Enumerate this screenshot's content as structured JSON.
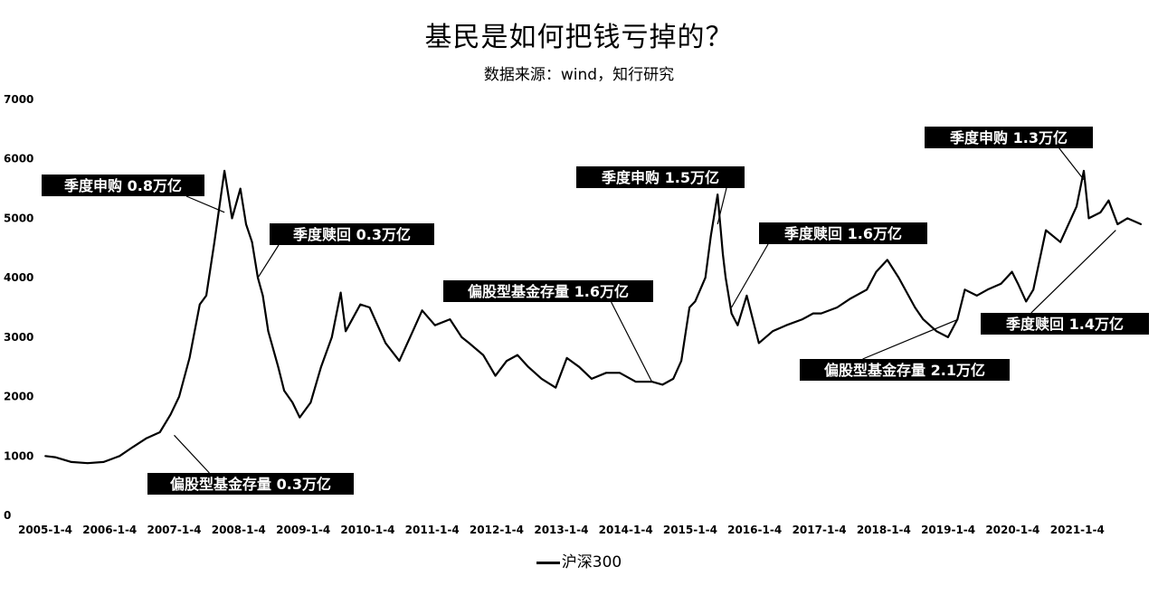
{
  "chart_data": {
    "type": "line",
    "title": "基民是如何把钱亏掉的？",
    "subtitle": "数据来源：wind，知行研究",
    "xlabel": "",
    "ylabel": "",
    "ylim": [
      0,
      7000
    ],
    "yticks": [
      0,
      1000,
      2000,
      3000,
      4000,
      5000,
      6000,
      7000
    ],
    "xticks": [
      "2005-1-4",
      "2006-1-4",
      "2007-1-4",
      "2008-1-4",
      "2009-1-4",
      "2010-1-4",
      "2011-1-4",
      "2012-1-4",
      "2013-1-4",
      "2014-1-4",
      "2015-1-4",
      "2016-1-4",
      "2017-1-4",
      "2018-1-4",
      "2019-1-4",
      "2020-1-4",
      "2021-1-4"
    ],
    "xlim": [
      "2005-01-04",
      "2021-12-31"
    ],
    "grid": false,
    "legend": "bottom-center",
    "series": [
      {
        "name": "沪深300",
        "x": [
          "2005-01-04",
          "2005-03-01",
          "2005-06-01",
          "2005-09-01",
          "2005-12-01",
          "2006-03-01",
          "2006-05-15",
          "2006-08-01",
          "2006-10-15",
          "2006-12-15",
          "2007-02-01",
          "2007-04-01",
          "2007-05-29",
          "2007-07-05",
          "2007-08-20",
          "2007-10-16",
          "2007-11-28",
          "2008-01-14",
          "2008-02-15",
          "2008-03-20",
          "2008-04-22",
          "2008-05-20",
          "2008-06-20",
          "2008-08-15",
          "2008-09-18",
          "2008-11-04",
          "2008-12-15",
          "2009-02-15",
          "2009-04-15",
          "2009-06-15",
          "2009-08-04",
          "2009-09-01",
          "2009-11-23",
          "2010-01-15",
          "2010-04-15",
          "2010-07-02",
          "2010-09-01",
          "2010-11-08",
          "2011-01-20",
          "2011-04-15",
          "2011-06-20",
          "2011-08-01",
          "2011-10-20",
          "2011-12-28",
          "2012-03-01",
          "2012-05-01",
          "2012-07-01",
          "2012-09-15",
          "2012-12-03",
          "2013-02-05",
          "2013-04-15",
          "2013-06-25",
          "2013-09-15",
          "2013-12-01",
          "2014-03-01",
          "2014-06-01",
          "2014-08-01",
          "2014-09-30",
          "2014-11-15",
          "2014-12-31",
          "2015-02-01",
          "2015-03-31",
          "2015-05-01",
          "2015-06-08",
          "2015-07-08",
          "2015-07-24",
          "2015-08-26",
          "2015-09-30",
          "2015-11-20",
          "2016-01-28",
          "2016-04-15",
          "2016-07-01",
          "2016-09-30",
          "2016-11-30",
          "2017-01-15",
          "2017-04-15",
          "2017-06-30",
          "2017-09-30",
          "2017-11-22",
          "2018-01-24",
          "2018-03-30",
          "2018-06-30",
          "2018-08-15",
          "2018-10-30",
          "2019-01-03",
          "2019-02-25",
          "2019-04-08",
          "2019-06-15",
          "2019-08-15",
          "2019-10-30",
          "2019-12-31",
          "2020-02-03",
          "2020-03-20",
          "2020-04-30",
          "2020-07-10",
          "2020-09-30",
          "2020-12-31",
          "2021-02-10",
          "2021-03-10",
          "2021-05-15",
          "2021-06-30",
          "2021-08-20",
          "2021-10-15",
          "2021-12-31"
        ],
        "values": [
          1000,
          980,
          900,
          880,
          900,
          1000,
          1150,
          1300,
          1400,
          1700,
          2000,
          2650,
          3550,
          3700,
          4600,
          5800,
          5000,
          5500,
          4900,
          4600,
          4000,
          3700,
          3100,
          2500,
          2100,
          1900,
          1650,
          1900,
          2500,
          3000,
          3750,
          3100,
          3550,
          3500,
          2900,
          2600,
          3000,
          3450,
          3200,
          3300,
          3000,
          2900,
          2700,
          2350,
          2600,
          2700,
          2500,
          2300,
          2150,
          2650,
          2500,
          2300,
          2400,
          2400,
          2250,
          2250,
          2200,
          2300,
          2600,
          3500,
          3600,
          4000,
          4700,
          5400,
          4400,
          4000,
          3400,
          3200,
          3700,
          2900,
          3100,
          3200,
          3300,
          3400,
          3400,
          3500,
          3650,
          3800,
          4100,
          4300,
          4000,
          3500,
          3300,
          3100,
          3000,
          3300,
          3800,
          3700,
          3800,
          3900,
          4100,
          3900,
          3600,
          3800,
          4800,
          4600,
          5200,
          5800,
          5000,
          5100,
          5300,
          4900,
          5000,
          4900
        ]
      }
    ],
    "annotations": [
      {
        "text": "季度申购 0.8万亿",
        "date": "2007-10-16",
        "value": 5100
      },
      {
        "text": "季度赎回 0.3万亿",
        "date": "2008-04-22",
        "value": 4000
      },
      {
        "text": "偏股型基金存量 0.3万亿",
        "date": "2007-01-04",
        "value": 1350
      },
      {
        "text": "偏股型基金存量 1.6万亿",
        "date": "2014-06-01",
        "value": 2250
      },
      {
        "text": "季度申购 1.5万亿",
        "date": "2015-06-08",
        "value": 4900
      },
      {
        "text": "季度赎回 1.6万亿",
        "date": "2015-08-26",
        "value": 3500
      },
      {
        "text": "偏股型基金存量 2.1万亿",
        "date": "2019-03-01",
        "value": 3300
      },
      {
        "text": "季度申购 1.3万亿",
        "date": "2021-02-10",
        "value": 5650
      },
      {
        "text": "季度赎回 1.4万亿",
        "date": "2021-08-10",
        "value": 4800
      }
    ]
  }
}
